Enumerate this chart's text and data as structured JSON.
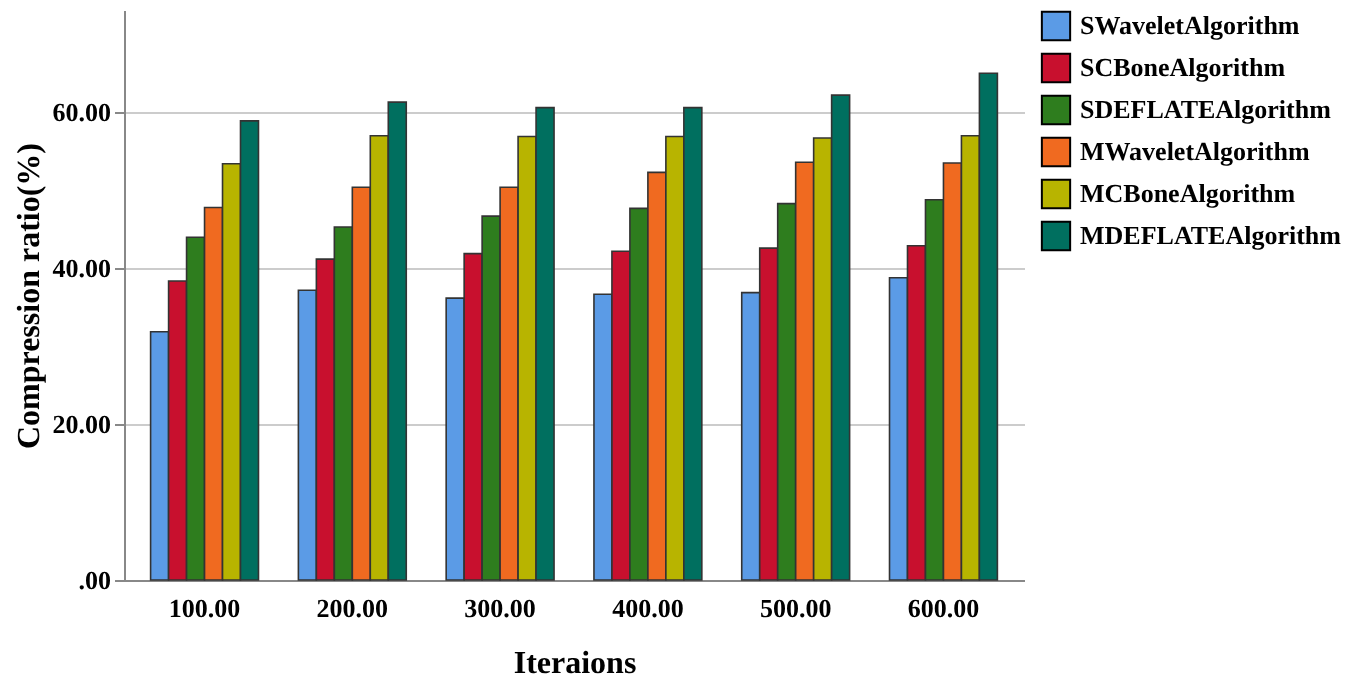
{
  "chart_data": {
    "type": "bar",
    "xlabel": "Iteraions",
    "ylabel": "Compression ratio(%)",
    "categories": [
      "100.00",
      "200.00",
      "300.00",
      "400.00",
      "500.00",
      "600.00"
    ],
    "series": [
      {
        "name": "SWaveletAlgorithm",
        "color": "#5b9be6",
        "values": [
          31.8,
          37.1,
          36.1,
          36.6,
          36.8,
          38.7
        ]
      },
      {
        "name": "SCBoneAlgorithm",
        "color": "#c8102e",
        "values": [
          38.3,
          41.1,
          41.8,
          42.1,
          42.5,
          42.8
        ]
      },
      {
        "name": "SDEFLATEAlgorithm",
        "color": "#2e7d1e",
        "values": [
          43.9,
          45.2,
          46.6,
          47.6,
          48.2,
          48.7
        ]
      },
      {
        "name": "MWaveletAlgorithm",
        "color": "#f06a20",
        "values": [
          47.7,
          50.3,
          50.3,
          52.2,
          53.5,
          53.4
        ]
      },
      {
        "name": "MCBoneAlgorithm",
        "color": "#b8b400",
        "values": [
          53.3,
          56.9,
          56.8,
          56.8,
          56.6,
          56.9
        ]
      },
      {
        "name": "MDEFLATEAlgorithm",
        "color": "#006f5f",
        "values": [
          58.8,
          61.2,
          60.5,
          60.5,
          62.1,
          64.9
        ]
      }
    ],
    "ylim": [
      0,
      73
    ],
    "yticks": [
      {
        "value": 0,
        "label": ".00"
      },
      {
        "value": 20,
        "label": "20.00"
      },
      {
        "value": 40,
        "label": "40.00"
      },
      {
        "value": 60,
        "label": "60.00"
      }
    ],
    "grid": "y",
    "legend": "top right"
  }
}
